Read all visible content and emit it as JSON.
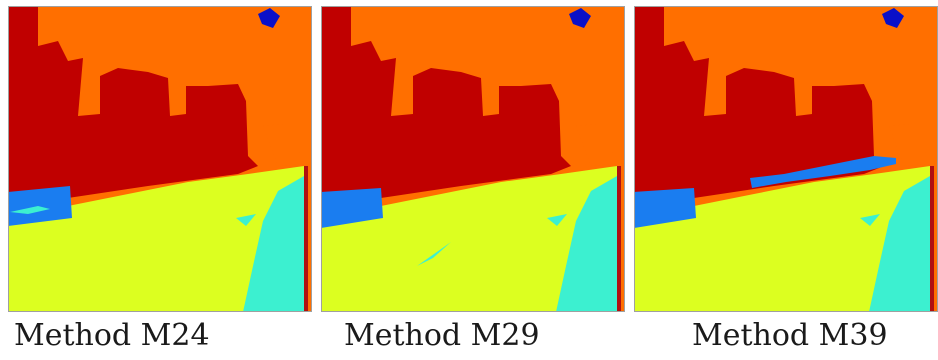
{
  "panels": [
    {
      "caption": "Method M24"
    },
    {
      "caption": "Method M29"
    },
    {
      "caption": "Method M39"
    }
  ],
  "colors": {
    "sky": "#ff6f00",
    "building": "#c00000",
    "road": "#dcff20",
    "sidewalk": "#3cf0d0",
    "water_blue": "#1a7df0",
    "dark_blue": "#0a10c8",
    "red_pole": "#b01010",
    "border": "#a0a0a0"
  },
  "icons": [
    "segmentation-map-m24",
    "segmentation-map-m29",
    "segmentation-map-m39"
  ]
}
